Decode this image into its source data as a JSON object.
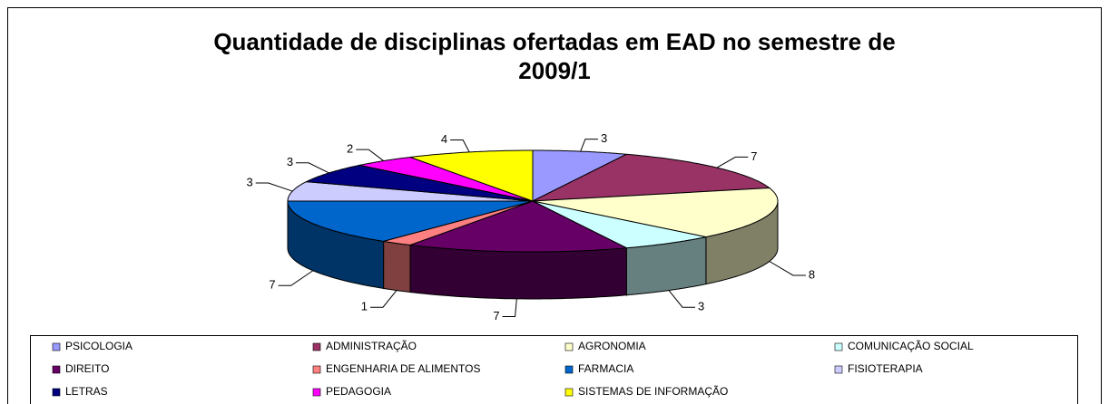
{
  "chart_data": {
    "type": "pie3d",
    "title": "Quantidade de disciplinas ofertadas em EAD no semestre de 2009/1",
    "categories": [
      "PSICOLOGIA",
      "ADMINISTRAÇÃO",
      "AGRONOMIA",
      "COMUNICAÇÃO SOCIAL",
      "DIREITO",
      "ENGENHARIA DE ALIMENTOS",
      "FARMACIA",
      "FISIOTERAPIA",
      "LETRAS",
      "PEDAGOGIA",
      "SISTEMAS DE INFORMAÇÃO"
    ],
    "values": [
      3,
      7,
      8,
      3,
      7,
      1,
      7,
      3,
      3,
      2,
      4
    ],
    "colors": [
      "#9999ff",
      "#993366",
      "#ffffcc",
      "#ccffff",
      "#660066",
      "#ff8080",
      "#0066cc",
      "#ccccff",
      "#000080",
      "#ff00ff",
      "#ffff00"
    ],
    "legend": "bottom"
  }
}
